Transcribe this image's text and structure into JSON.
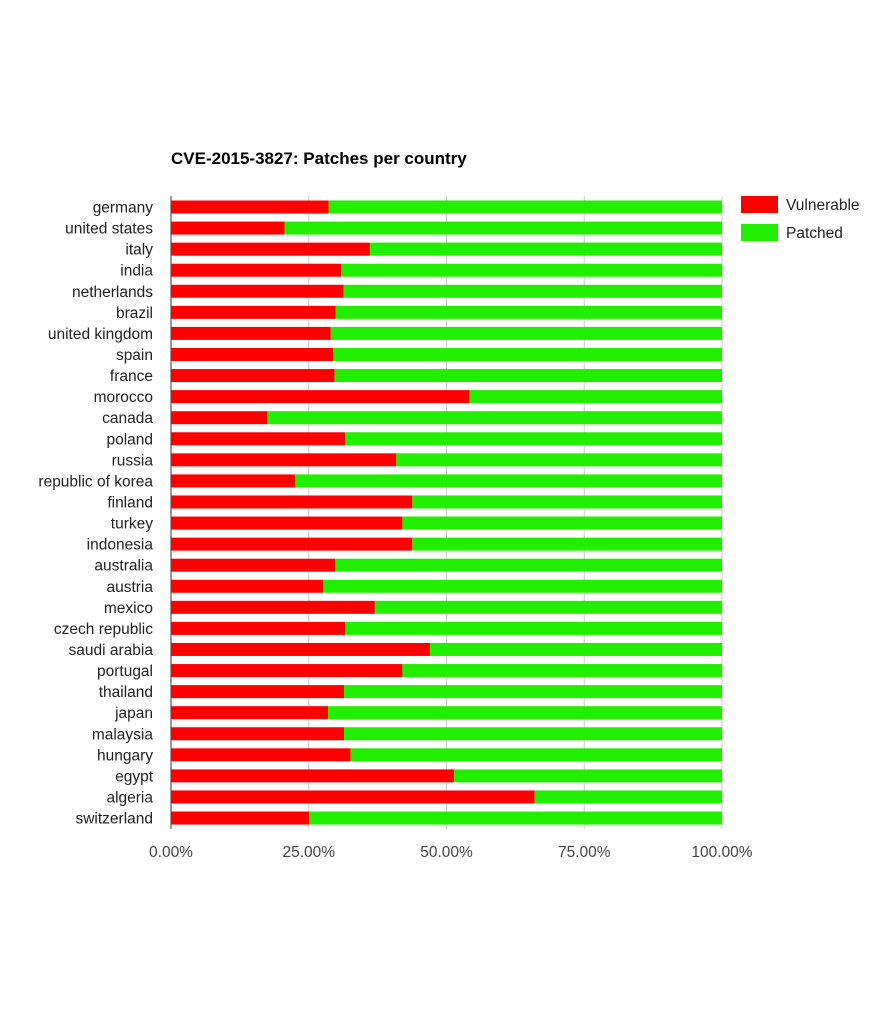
{
  "chart_data": {
    "type": "bar",
    "orientation": "horizontal",
    "stacked": true,
    "percent": true,
    "title": "CVE-2015-3827: Patches per country",
    "xlabel": "",
    "ylabel": "",
    "xlim": [
      0,
      100
    ],
    "x_ticks": [
      "0.00%",
      "25.00%",
      "50.00%",
      "75.00%",
      "100.00%"
    ],
    "grid": true,
    "legend_position": "right",
    "categories": [
      "germany",
      "united states",
      "italy",
      "india",
      "netherlands",
      "brazil",
      "united kingdom",
      "spain",
      "france",
      "morocco",
      "canada",
      "poland",
      "russia",
      "republic of korea",
      "finland",
      "turkey",
      "indonesia",
      "australia",
      "austria",
      "mexico",
      "czech republic",
      "saudi arabia",
      "portugal",
      "thailand",
      "japan",
      "malaysia",
      "hungary",
      "egypt",
      "algeria",
      "switzerland"
    ],
    "series": [
      {
        "name": "Vulnerable",
        "color": "#ff0000",
        "values": [
          28.6,
          20.6,
          36.1,
          30.9,
          31.3,
          29.9,
          29.0,
          29.4,
          29.7,
          54.2,
          17.5,
          31.6,
          40.9,
          22.5,
          43.8,
          42.0,
          43.8,
          29.8,
          27.6,
          37.0,
          31.6,
          47.0,
          42.0,
          31.4,
          28.5,
          31.4,
          32.6,
          51.4,
          66.0,
          25.1
        ]
      },
      {
        "name": "Patched",
        "color": "#22ee00",
        "values": [
          71.4,
          79.4,
          63.9,
          69.1,
          68.7,
          70.1,
          71.0,
          70.6,
          70.3,
          45.8,
          82.5,
          68.4,
          59.1,
          77.5,
          56.2,
          58.0,
          56.2,
          70.2,
          72.4,
          63.0,
          68.4,
          53.0,
          58.0,
          68.6,
          71.5,
          68.6,
          67.4,
          48.6,
          34.0,
          74.9
        ]
      }
    ]
  }
}
